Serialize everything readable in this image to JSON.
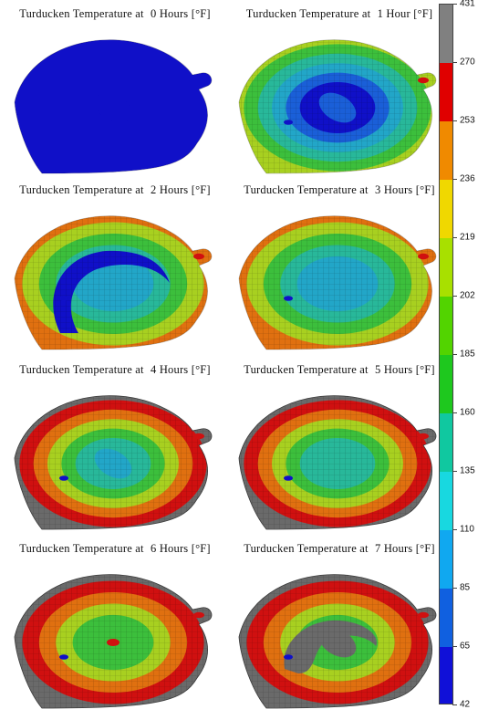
{
  "figure": {
    "title_prefix": "Turducken  Temperature  at",
    "unit": "[°F]"
  },
  "panels": [
    {
      "hours_label": "0 Hours",
      "color_level": 0
    },
    {
      "hours_label": "1 Hour",
      "color_level": 1
    },
    {
      "hours_label": "2 Hours",
      "color_level": 2
    },
    {
      "hours_label": "3 Hours",
      "color_level": 3
    },
    {
      "hours_label": "4 Hours",
      "color_level": 4
    },
    {
      "hours_label": "5 Hours",
      "color_level": 5
    },
    {
      "hours_label": "6 Hours",
      "color_level": 6
    },
    {
      "hours_label": "7 Hours",
      "color_level": 7
    }
  ],
  "colorbar": {
    "ticks": [
      "431",
      "270",
      "253",
      "236",
      "219",
      "202",
      "185",
      "160",
      "135",
      "110",
      "85",
      "65",
      "42"
    ],
    "colors": [
      "#808080",
      "#e00000",
      "#f08a00",
      "#f0d800",
      "#a8e000",
      "#52d400",
      "#1ec81e",
      "#10c8a0",
      "#18d8e0",
      "#10a8f0",
      "#1060e0",
      "#1010d8"
    ]
  },
  "palette": {
    "cold": "#1010c8",
    "blue": "#1a5fd8",
    "cyan": "#22a6c8",
    "teal": "#28b89a",
    "green": "#3cbf3c",
    "yellow_green": "#a8d020",
    "orange": "#e07010",
    "red": "#d01010",
    "grey": "#6a6a6a"
  }
}
